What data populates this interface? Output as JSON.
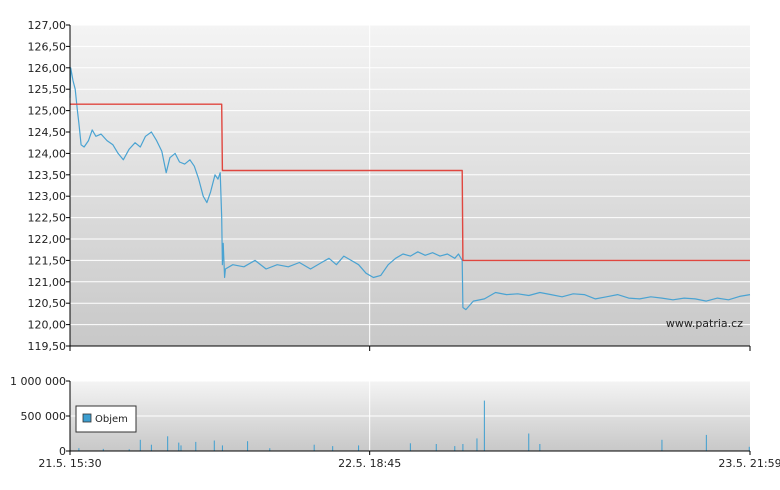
{
  "watermark": "www.patria.cz",
  "colors": {
    "price_line": "#4aa3d2",
    "reference_line": "#e0463f",
    "plot_bg_top": "#f4f4f4",
    "plot_bg_bottom": "#c8c8c8",
    "grid": "#ffffff",
    "volume_bar": "#3c9ed0",
    "axis": "#000000"
  },
  "chart_data": [
    {
      "type": "line",
      "title": "",
      "xlabel": "",
      "ylabel": "",
      "ylim": [
        119.5,
        127.0
      ],
      "y_ticks": [
        "127,00",
        "126,50",
        "126,00",
        "125,50",
        "125,00",
        "124,50",
        "124,00",
        "123,50",
        "123,00",
        "122,50",
        "122,00",
        "121,50",
        "121,00",
        "120,50",
        "120,00",
        "119,50"
      ],
      "x_ticks": [
        "21.5. 15:30",
        "22.5. 18:45",
        "23.5. 21:59"
      ],
      "grid": true,
      "series": [
        {
          "role": "price",
          "color": "#4aa3d2",
          "points": [
            [
              "21.5. 15:30",
              125.3
            ],
            [
              "21.5. 15:31",
              126.0
            ],
            [
              "21.5. 15:34",
              125.7
            ],
            [
              "21.5. 15:37",
              125.5
            ],
            [
              "21.5. 15:40",
              125.0
            ],
            [
              "21.5. 15:42",
              124.7
            ],
            [
              "21.5. 15:45",
              124.2
            ],
            [
              "21.5. 15:49",
              124.15
            ],
            [
              "21.5. 15:55",
              124.3
            ],
            [
              "21.5. 16:00",
              124.55
            ],
            [
              "21.5. 16:05",
              124.4
            ],
            [
              "21.5. 16:12",
              124.45
            ],
            [
              "21.5. 16:20",
              124.3
            ],
            [
              "21.5. 16:28",
              124.2
            ],
            [
              "21.5. 16:35",
              124.0
            ],
            [
              "21.5. 16:42",
              123.85
            ],
            [
              "21.5. 16:50",
              124.1
            ],
            [
              "21.5. 16:58",
              124.25
            ],
            [
              "21.5. 17:05",
              124.15
            ],
            [
              "21.5. 17:12",
              124.4
            ],
            [
              "21.5. 17:20",
              124.5
            ],
            [
              "21.5. 17:27",
              124.3
            ],
            [
              "21.5. 17:34",
              124.05
            ],
            [
              "21.5. 17:40",
              123.55
            ],
            [
              "21.5. 17:45",
              123.9
            ],
            [
              "21.5. 17:52",
              124.0
            ],
            [
              "21.5. 17:58",
              123.8
            ],
            [
              "21.5. 18:05",
              123.75
            ],
            [
              "21.5. 18:12",
              123.85
            ],
            [
              "21.5. 18:18",
              123.7
            ],
            [
              "21.5. 18:24",
              123.4
            ],
            [
              "21.5. 18:30",
              123.0
            ],
            [
              "21.5. 18:35",
              122.85
            ],
            [
              "21.5. 18:40",
              123.1
            ],
            [
              "21.5. 18:46",
              123.5
            ],
            [
              "21.5. 18:50",
              123.4
            ],
            [
              "21.5. 18:53",
              123.55
            ],
            [
              "21.5. 18:55",
              122.5
            ],
            [
              "21.5. 18:56",
              121.4
            ],
            [
              "21.5. 18:57",
              121.9
            ],
            [
              "21.5. 18:59",
              121.1
            ],
            [
              "21.5. 19:00",
              121.3
            ],
            [
              "22.5. 15:40",
              121.4
            ],
            [
              "22.5. 15:55",
              121.35
            ],
            [
              "22.5. 16:10",
              121.5
            ],
            [
              "22.5. 16:25",
              121.3
            ],
            [
              "22.5. 16:40",
              121.4
            ],
            [
              "22.5. 16:55",
              121.35
            ],
            [
              "22.5. 17:10",
              121.45
            ],
            [
              "22.5. 17:25",
              121.3
            ],
            [
              "22.5. 17:40",
              121.45
            ],
            [
              "22.5. 17:50",
              121.55
            ],
            [
              "22.5. 18:00",
              121.4
            ],
            [
              "22.5. 18:10",
              121.6
            ],
            [
              "22.5. 18:20",
              121.5
            ],
            [
              "22.5. 18:30",
              121.4
            ],
            [
              "22.5. 18:40",
              121.2
            ],
            [
              "22.5. 18:50",
              121.1
            ],
            [
              "22.5. 19:00",
              121.15
            ],
            [
              "22.5. 19:10",
              121.4
            ],
            [
              "22.5. 19:20",
              121.55
            ],
            [
              "22.5. 19:30",
              121.65
            ],
            [
              "22.5. 19:40",
              121.6
            ],
            [
              "22.5. 19:50",
              121.7
            ],
            [
              "22.5. 20:00",
              121.62
            ],
            [
              "22.5. 20:10",
              121.68
            ],
            [
              "22.5. 20:20",
              121.6
            ],
            [
              "22.5. 20:30",
              121.65
            ],
            [
              "22.5. 20:40",
              121.55
            ],
            [
              "22.5. 20:45",
              121.65
            ],
            [
              "22.5. 20:50",
              121.5
            ],
            [
              "23.5. 15:31",
              120.4
            ],
            [
              "23.5. 15:35",
              120.35
            ],
            [
              "23.5. 15:45",
              120.55
            ],
            [
              "23.5. 16:00",
              120.6
            ],
            [
              "23.5. 16:15",
              120.75
            ],
            [
              "23.5. 16:30",
              120.7
            ],
            [
              "23.5. 16:45",
              120.72
            ],
            [
              "23.5. 17:00",
              120.68
            ],
            [
              "23.5. 17:15",
              120.75
            ],
            [
              "23.5. 17:30",
              120.7
            ],
            [
              "23.5. 17:45",
              120.65
            ],
            [
              "23.5. 18:00",
              120.72
            ],
            [
              "23.5. 18:15",
              120.7
            ],
            [
              "23.5. 18:30",
              120.6
            ],
            [
              "23.5. 18:45",
              120.65
            ],
            [
              "23.5. 19:00",
              120.7
            ],
            [
              "23.5. 19:15",
              120.62
            ],
            [
              "23.5. 19:30",
              120.6
            ],
            [
              "23.5. 19:45",
              120.65
            ],
            [
              "23.5. 20:00",
              120.62
            ],
            [
              "23.5. 20:15",
              120.58
            ],
            [
              "23.5. 20:30",
              120.62
            ],
            [
              "23.5. 20:45",
              120.6
            ],
            [
              "23.5. 21:00",
              120.55
            ],
            [
              "23.5. 21:15",
              120.62
            ],
            [
              "23.5. 21:30",
              120.58
            ],
            [
              "23.5. 21:45",
              120.66
            ],
            [
              "23.5. 21:59",
              120.7
            ]
          ]
        },
        {
          "role": "reference",
          "color": "#e0463f",
          "points": [
            [
              "21.5. 15:30",
              125.15
            ],
            [
              "21.5. 18:55",
              125.15
            ],
            [
              "21.5. 18:56",
              123.6
            ],
            [
              "22.5. 20:50",
              123.6
            ],
            [
              "23.5. 15:31",
              121.5
            ],
            [
              "23.5. 21:59",
              121.5
            ]
          ]
        }
      ]
    },
    {
      "type": "bar",
      "title": "",
      "xlabel": "",
      "ylabel": "",
      "ylim": [
        0,
        1000000
      ],
      "y_ticks": [
        "1 000 000",
        "500 000",
        "0"
      ],
      "x_ticks": [
        "21.5. 15:30",
        "22.5. 18:45",
        "23.5. 21:59"
      ],
      "legend": "bottom-left",
      "series": [
        {
          "name": "Objem",
          "color": "#3c9ed0",
          "points": [
            [
              "21.5. 15:42",
              40000
            ],
            [
              "21.5. 16:15",
              30000
            ],
            [
              "21.5. 16:50",
              25000
            ],
            [
              "21.5. 17:05",
              160000
            ],
            [
              "21.5. 17:20",
              90000
            ],
            [
              "21.5. 17:42",
              210000
            ],
            [
              "21.5. 17:57",
              120000
            ],
            [
              "21.5. 18:00",
              80000
            ],
            [
              "21.5. 18:20",
              130000
            ],
            [
              "21.5. 18:45",
              150000
            ],
            [
              "21.5. 18:56",
              80000
            ],
            [
              "22.5. 16:00",
              140000
            ],
            [
              "22.5. 16:30",
              40000
            ],
            [
              "22.5. 17:30",
              90000
            ],
            [
              "22.5. 17:55",
              70000
            ],
            [
              "22.5. 18:30",
              80000
            ],
            [
              "22.5. 19:40",
              110000
            ],
            [
              "22.5. 20:15",
              100000
            ],
            [
              "22.5. 20:40",
              70000
            ],
            [
              "23.5. 15:31",
              100000
            ],
            [
              "23.5. 15:50",
              180000
            ],
            [
              "23.5. 16:00",
              720000
            ],
            [
              "23.5. 17:00",
              250000
            ],
            [
              "23.5. 17:15",
              100000
            ],
            [
              "23.5. 20:00",
              160000
            ],
            [
              "23.5. 21:00",
              230000
            ],
            [
              "23.5. 21:58",
              60000
            ]
          ]
        }
      ]
    }
  ]
}
